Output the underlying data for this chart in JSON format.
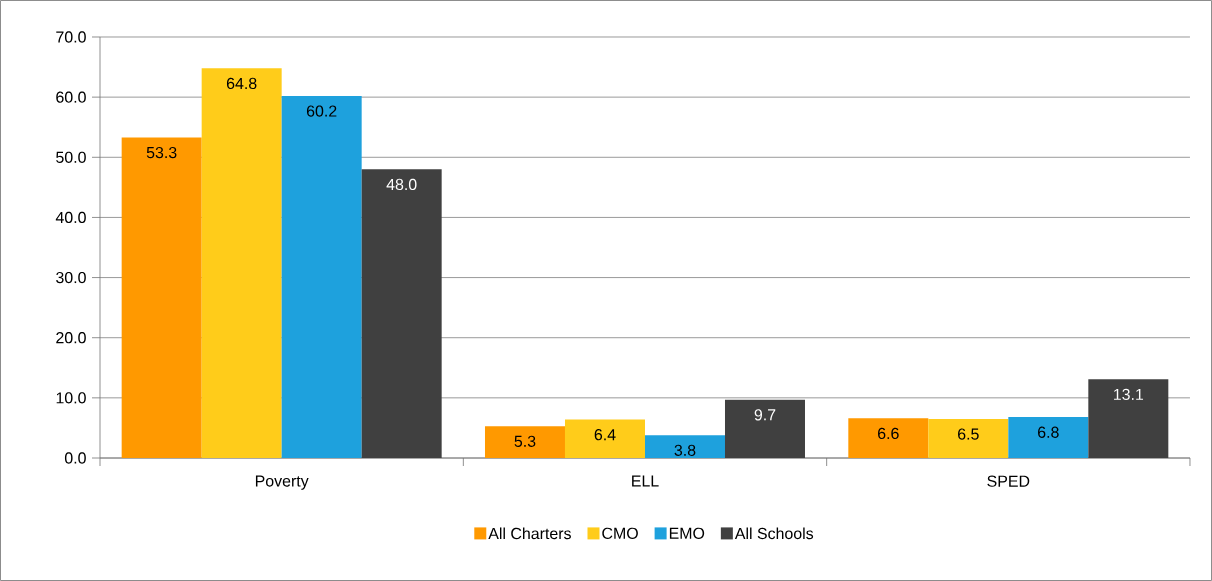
{
  "chart_data": {
    "type": "bar",
    "categories": [
      "Poverty",
      "ELL",
      "SPED"
    ],
    "series": [
      {
        "name": "All Charters",
        "color": "#ff9900",
        "values": [
          53.3,
          5.3,
          6.6
        ],
        "value_labels": [
          "53.3",
          "5.3",
          "6.6"
        ]
      },
      {
        "name": "CMO",
        "color": "#ffcc1a",
        "values": [
          64.8,
          6.4,
          6.5
        ],
        "value_labels": [
          "64.8",
          "6.4",
          "6.5"
        ]
      },
      {
        "name": "EMO",
        "color": "#1ea1dd",
        "values": [
          60.2,
          3.8,
          6.8
        ],
        "value_labels": [
          "60.2",
          "3.8",
          "6.8"
        ]
      },
      {
        "name": "All Schools",
        "color": "#404040",
        "values": [
          48.0,
          9.7,
          13.1
        ],
        "value_labels": [
          "48.0",
          "9.7",
          "13.1"
        ]
      }
    ],
    "ylim": [
      0,
      70
    ],
    "yticks": [
      {
        "value": 0,
        "label": "0.0"
      },
      {
        "value": 10,
        "label": "10.0"
      },
      {
        "value": 20,
        "label": "20.0"
      },
      {
        "value": 30,
        "label": "30.0"
      },
      {
        "value": 40,
        "label": "40.0"
      },
      {
        "value": 50,
        "label": "50.0"
      },
      {
        "value": 60,
        "label": "60.0"
      },
      {
        "value": 70,
        "label": "70.0"
      }
    ],
    "grid": "y",
    "legend": "bottom"
  }
}
